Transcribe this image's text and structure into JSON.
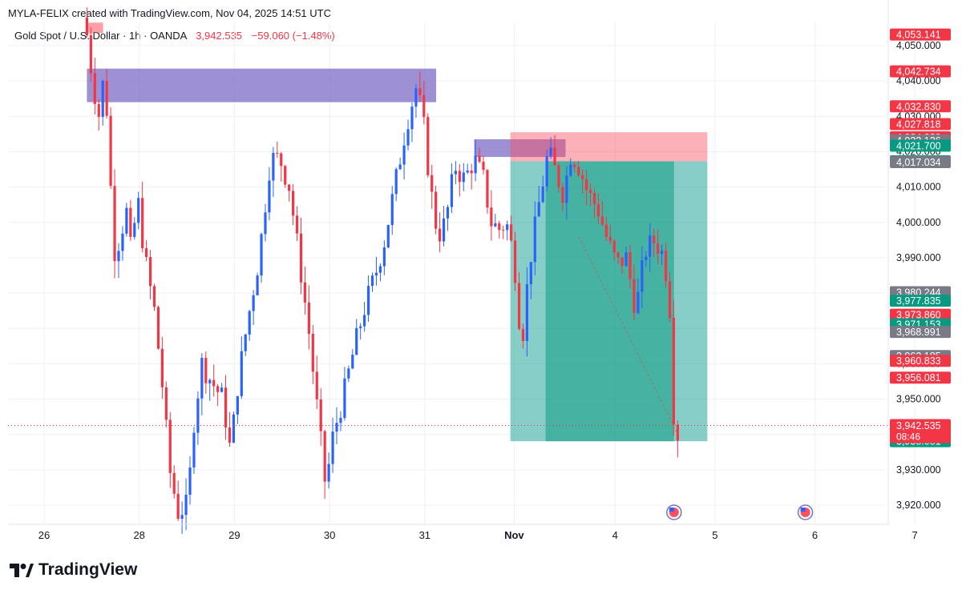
{
  "header": {
    "credit": "MYLA-FELIX created with TradingView.com, Nov 04, 2025 14:51 UTC",
    "symbol": "Gold Spot / U.S. Dollar · 1h · OANDA",
    "last_price": "3,942.535",
    "change": "−59.060 (−1.48%)"
  },
  "brand": {
    "name": "TradingView"
  },
  "colors": {
    "up": "#2962ff",
    "down": "#f23645",
    "target": "#26a69a",
    "stop": "#f7525f",
    "zone": "#7e6cc4"
  },
  "chart_data": {
    "type": "candlestick",
    "symbol": "Gold Spot / U.S. Dollar",
    "interval": "1h",
    "exchange": "OANDA",
    "ylim": [
      3913,
      4058
    ],
    "yticks": [
      "3,920.000",
      "3,930.000",
      "3,940.000",
      "3,950.000",
      "3,960.000",
      "3,970.000",
      "3,980.000",
      "3,990.000",
      "4,000.000",
      "4,010.000",
      "4,020.000",
      "4,030.000",
      "4,040.000",
      "4,050.000"
    ],
    "xticks": [
      {
        "label": "26",
        "t": 0.0
      },
      {
        "label": "28",
        "t": 1.0
      },
      {
        "label": "29",
        "t": 2.0
      },
      {
        "label": "30",
        "t": 3.0
      },
      {
        "label": "31",
        "t": 4.0
      },
      {
        "label": "Nov",
        "t": 4.94
      },
      {
        "label": "4",
        "t": 6.0
      },
      {
        "label": "5",
        "t": 7.05
      },
      {
        "label": "6",
        "t": 8.1
      },
      {
        "label": "7",
        "t": 9.15
      }
    ],
    "path_points": [
      {
        "t": 0.45,
        "p": 4058
      },
      {
        "t": 0.5,
        "p": 4052
      },
      {
        "t": 0.55,
        "p": 4040
      },
      {
        "t": 0.62,
        "p": 4030
      },
      {
        "t": 0.68,
        "p": 4044
      },
      {
        "t": 0.72,
        "p": 4020
      },
      {
        "t": 0.78,
        "p": 3992
      },
      {
        "t": 0.85,
        "p": 3996
      },
      {
        "t": 0.9,
        "p": 4005
      },
      {
        "t": 0.96,
        "p": 3990
      },
      {
        "t": 1.02,
        "p": 4008
      },
      {
        "t": 1.1,
        "p": 3990
      },
      {
        "t": 1.2,
        "p": 3975
      },
      {
        "t": 1.28,
        "p": 3955
      },
      {
        "t": 1.36,
        "p": 3930
      },
      {
        "t": 1.45,
        "p": 3918
      },
      {
        "t": 1.55,
        "p": 3920
      },
      {
        "t": 1.62,
        "p": 3945
      },
      {
        "t": 1.7,
        "p": 3960
      },
      {
        "t": 1.8,
        "p": 3955
      },
      {
        "t": 1.92,
        "p": 3950
      },
      {
        "t": 2.0,
        "p": 3935
      },
      {
        "t": 2.08,
        "p": 3955
      },
      {
        "t": 2.18,
        "p": 3972
      },
      {
        "t": 2.3,
        "p": 3990
      },
      {
        "t": 2.42,
        "p": 4018
      },
      {
        "t": 2.52,
        "p": 4018
      },
      {
        "t": 2.62,
        "p": 4010
      },
      {
        "t": 2.72,
        "p": 3990
      },
      {
        "t": 2.82,
        "p": 3970
      },
      {
        "t": 2.92,
        "p": 3945
      },
      {
        "t": 3.0,
        "p": 3925
      },
      {
        "t": 3.08,
        "p": 3940
      },
      {
        "t": 3.18,
        "p": 3950
      },
      {
        "t": 3.28,
        "p": 3962
      },
      {
        "t": 3.4,
        "p": 3975
      },
      {
        "t": 3.52,
        "p": 3985
      },
      {
        "t": 3.62,
        "p": 3995
      },
      {
        "t": 3.74,
        "p": 4012
      },
      {
        "t": 3.85,
        "p": 4028
      },
      {
        "t": 3.95,
        "p": 4038
      },
      {
        "t": 4.02,
        "p": 4030
      },
      {
        "t": 4.1,
        "p": 4010
      },
      {
        "t": 4.18,
        "p": 3996
      },
      {
        "t": 4.26,
        "p": 4000
      },
      {
        "t": 4.36,
        "p": 4016
      },
      {
        "t": 4.46,
        "p": 4012
      },
      {
        "t": 4.56,
        "p": 4018
      },
      {
        "t": 4.66,
        "p": 4012
      },
      {
        "t": 4.74,
        "p": 4000
      },
      {
        "t": 4.82,
        "p": 3998
      },
      {
        "t": 4.9,
        "p": 4000
      },
      {
        "t": 4.98,
        "p": 3990
      },
      {
        "t": 5.06,
        "p": 3965
      },
      {
        "t": 5.14,
        "p": 3988
      },
      {
        "t": 5.24,
        "p": 4005
      },
      {
        "t": 5.34,
        "p": 4020
      },
      {
        "t": 5.42,
        "p": 4014
      },
      {
        "t": 5.5,
        "p": 4008
      },
      {
        "t": 5.58,
        "p": 4020
      },
      {
        "t": 5.66,
        "p": 4016
      },
      {
        "t": 5.76,
        "p": 4008
      },
      {
        "t": 5.86,
        "p": 4004
      },
      {
        "t": 5.96,
        "p": 3995
      },
      {
        "t": 6.06,
        "p": 3988
      },
      {
        "t": 6.16,
        "p": 3990
      },
      {
        "t": 6.26,
        "p": 3975
      },
      {
        "t": 6.36,
        "p": 3992
      },
      {
        "t": 6.46,
        "p": 3995
      },
      {
        "t": 6.56,
        "p": 3990
      },
      {
        "t": 6.62,
        "p": 3975
      },
      {
        "t": 6.66,
        "p": 3945
      },
      {
        "t": 6.68,
        "p": 3940
      }
    ],
    "zones": [
      {
        "t0": 0.45,
        "t1": 0.62,
        "p0": 4053.5,
        "p1": 4056.5,
        "color": "#f7525f",
        "opacity": 0.55
      },
      {
        "t0": 0.45,
        "t1": 4.12,
        "p0": 4034,
        "p1": 4043.5,
        "color": "#7e6cc4",
        "opacity": 0.75
      },
      {
        "t0": 4.52,
        "t1": 5.48,
        "p0": 4018.5,
        "p1": 4023.5,
        "color": "#7e6cc4",
        "opacity": 0.75
      }
    ],
    "position": {
      "t0": 4.9,
      "t1": 6.97,
      "entry": 4017.271,
      "stop": 4025.5,
      "target": 3938.081,
      "inner_t0": 5.27,
      "inner_t1": 6.62
    },
    "price_labels": [
      {
        "text": "4,053.141",
        "p": 4053.141,
        "bg": "#f23645"
      },
      {
        "text": "4,042.734",
        "p": 4042.734,
        "bg": "#f23645"
      },
      {
        "text": "4,032.830",
        "p": 4032.83,
        "bg": "#f23645"
      },
      {
        "text": "4,027.818",
        "p": 4027.818,
        "bg": "#f23645"
      },
      {
        "text": "4,024.080",
        "p": 4024.08,
        "bg": "#f23645"
      },
      {
        "text": "4,023.126",
        "p": 4023.126,
        "bg": "#787b86"
      },
      {
        "text": "4,021.700",
        "p": 4021.7,
        "bg": "#089981"
      },
      {
        "text": "4,017.271",
        "p": 4017.271,
        "bg": "#089981"
      },
      {
        "text": "4,017.034",
        "p": 4017.034,
        "bg": "#787b86"
      },
      {
        "text": "3,980.244",
        "p": 3980.244,
        "bg": "#787b86"
      },
      {
        "text": "3,977.835",
        "p": 3977.835,
        "bg": "#089981"
      },
      {
        "text": "3,973.860",
        "p": 3973.86,
        "bg": "#f23645"
      },
      {
        "text": "3,971.153",
        "p": 3971.153,
        "bg": "#089981"
      },
      {
        "text": "3,968.991",
        "p": 3968.991,
        "bg": "#787b86"
      },
      {
        "text": "3,962.185",
        "p": 3962.185,
        "bg": "#787b86"
      },
      {
        "text": "3,960.833",
        "p": 3960.833,
        "bg": "#f23645"
      },
      {
        "text": "3,956.081",
        "p": 3956.081,
        "bg": "#f23645"
      },
      {
        "text": "3,938.081",
        "p": 3938.081,
        "bg": "#089981"
      }
    ],
    "current": {
      "price": 3942.535,
      "text": "3,942.535",
      "countdown": "08:46"
    },
    "events": [
      {
        "t": 6.62
      },
      {
        "t": 8.0
      }
    ]
  }
}
